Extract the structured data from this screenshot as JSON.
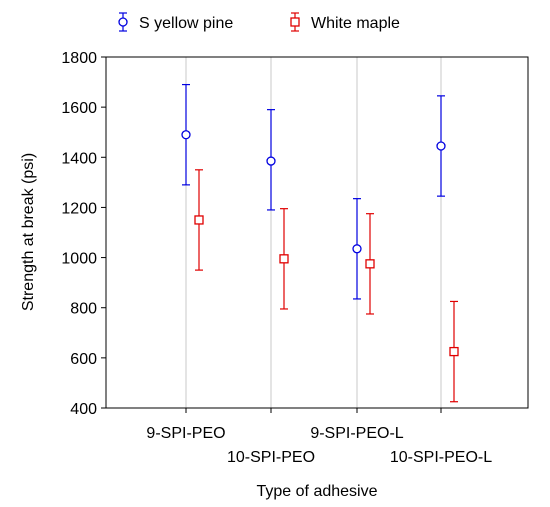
{
  "chart_data": {
    "type": "scatter",
    "subtype": "error-bar",
    "title": "",
    "xlabel": "Type of adhesive",
    "ylabel": "Strength at break (psi)",
    "ylim": [
      400,
      1800
    ],
    "yticks": [
      400,
      600,
      800,
      1000,
      1200,
      1400,
      1600,
      1800
    ],
    "grid": "vertical",
    "legend_position": "top",
    "categories": [
      "9-SPI-PEO",
      "10-SPI-PEO",
      "9-SPI-PEO-L",
      "10-SPI-PEO-L"
    ],
    "series": [
      {
        "name": "S yellow pine",
        "marker": "circle",
        "color": "#0000e0",
        "values": [
          1490,
          1385,
          1035,
          1445
        ],
        "lower": [
          1290,
          1190,
          835,
          1245
        ],
        "upper": [
          1690,
          1590,
          1235,
          1645
        ]
      },
      {
        "name": "White maple",
        "marker": "square",
        "color": "#e00000",
        "values": [
          1150,
          995,
          975,
          625
        ],
        "lower": [
          950,
          795,
          775,
          425
        ],
        "upper": [
          1350,
          1195,
          1175,
          825
        ]
      }
    ]
  }
}
